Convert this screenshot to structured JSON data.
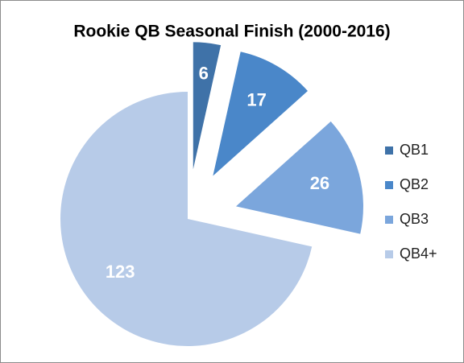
{
  "chart_data": {
    "type": "pie",
    "title": "Rookie QB Seasonal Finish (2000-2016)",
    "categories": [
      "QB1",
      "QB2",
      "QB3",
      "QB4+"
    ],
    "values": [
      6,
      17,
      26,
      123
    ],
    "colors": [
      "#3f72a8",
      "#4a87c9",
      "#7ba6dc",
      "#b7cbe8"
    ],
    "exploded": [
      true,
      true,
      true,
      false
    ],
    "legend": "right"
  }
}
